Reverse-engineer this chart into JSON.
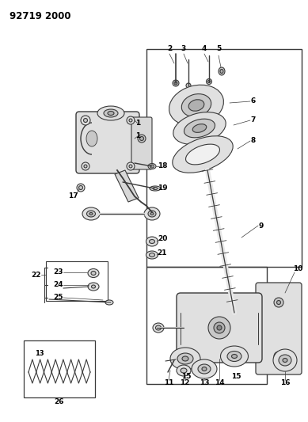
{
  "title": "92719 2000",
  "bg": "#ffffff",
  "lc": "#3a3a3a",
  "tc": "#000000",
  "fw": 3.89,
  "fh": 5.33,
  "dpi": 100,
  "gray1": "#e0e0e0",
  "gray2": "#c8c8c8",
  "gray3": "#b0b0b0",
  "gray4": "#d8d8d8"
}
